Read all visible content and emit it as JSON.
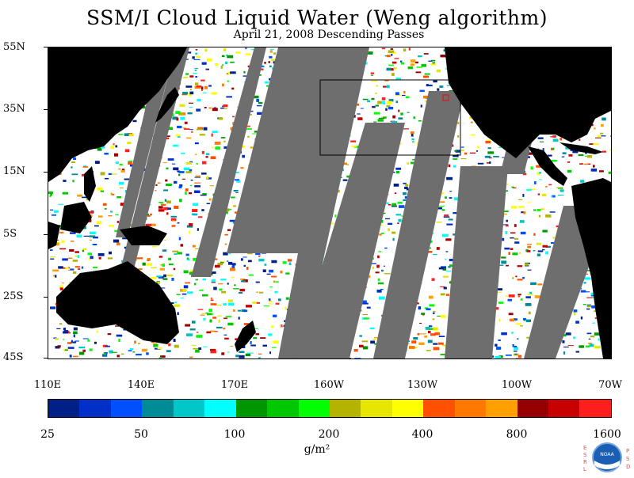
{
  "title": "SSM/I Cloud Liquid Water (Weng algorithm)",
  "subtitle": "April 21, 2008  Descending Passes",
  "map": {
    "lat_labels": [
      "55N",
      "35N",
      "15N",
      "5S",
      "25S",
      "45S"
    ],
    "lon_labels": [
      "110E",
      "140E",
      "170E",
      "160W",
      "130W",
      "100W",
      "70W"
    ],
    "colors": {
      "land": "#000000",
      "no_data": "#6e6e6e",
      "ocean_clear": "#ffffff",
      "box_outline": "#000000",
      "marker": "#ff0000"
    }
  },
  "colorbar": {
    "labels": [
      "25",
      "50",
      "100",
      "200",
      "400",
      "800",
      "1600"
    ],
    "unit": "g/m²",
    "colors": [
      "#002088",
      "#0030c8",
      "#0050ff",
      "#008c96",
      "#00c8c8",
      "#00ffff",
      "#009600",
      "#00c800",
      "#00ff00",
      "#b4b400",
      "#e6e600",
      "#ffff00",
      "#ff5000",
      "#ff7800",
      "#ffa000",
      "#960000",
      "#c80000",
      "#ff1e1e"
    ]
  },
  "logo": {
    "left_letters": "E S R L",
    "right_letters": "P S D",
    "center": "NOAA"
  }
}
